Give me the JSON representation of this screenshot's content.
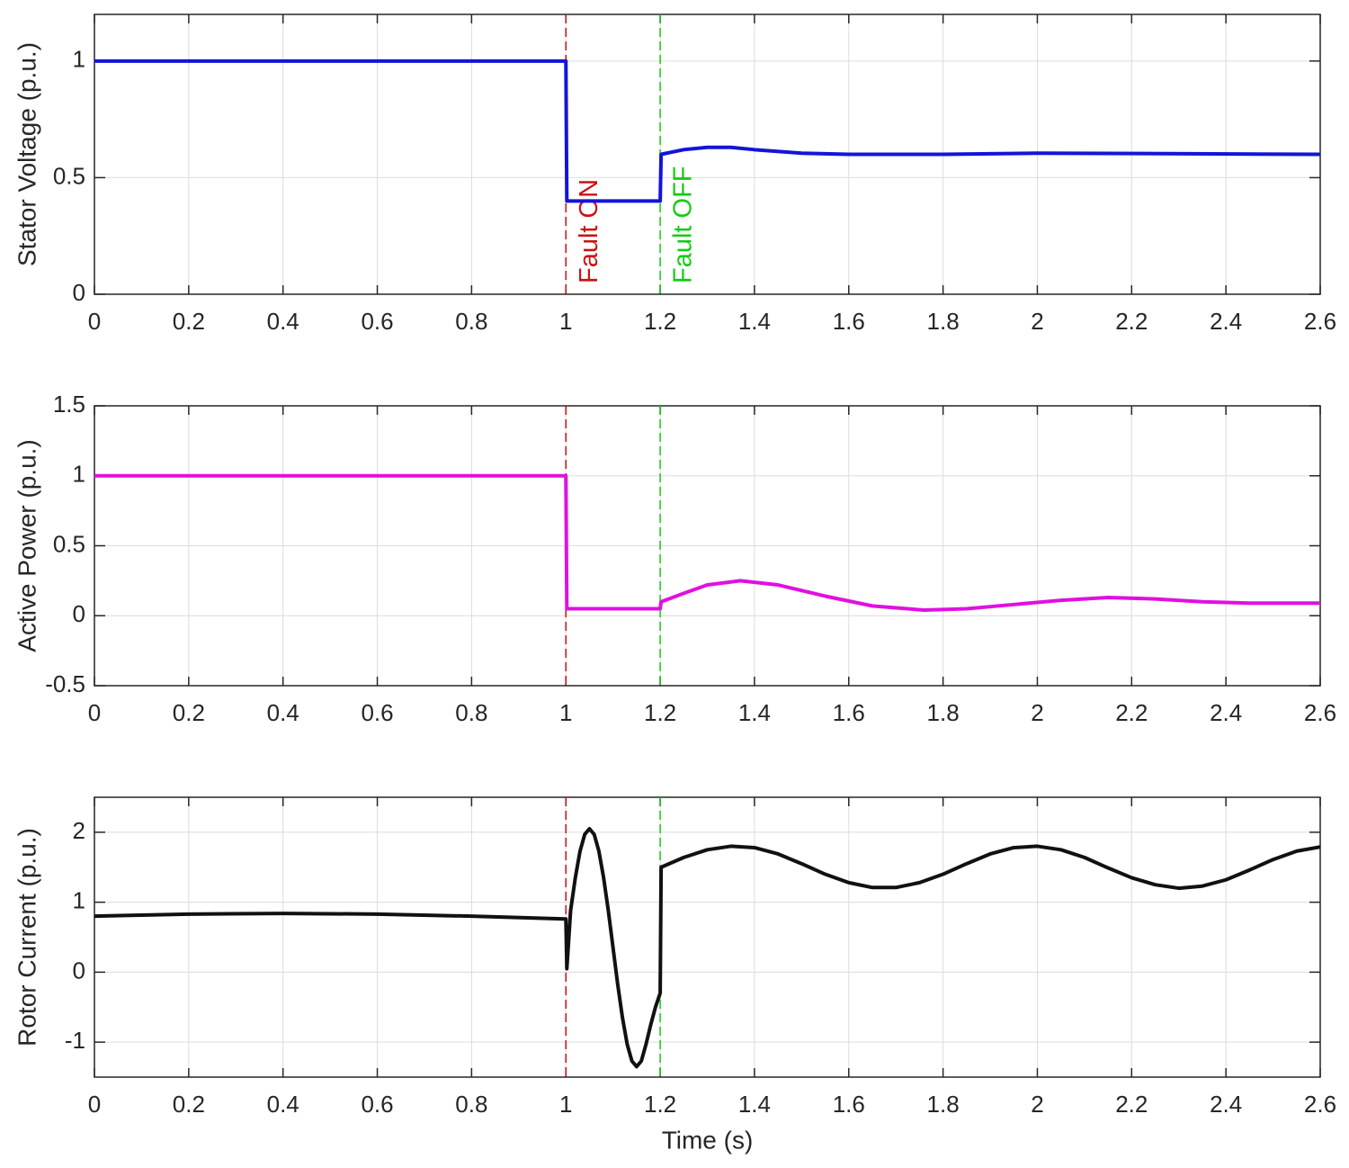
{
  "chart_data": [
    {
      "type": "line",
      "ylabel": "Stator Voltage (p.u.)",
      "color": "#1414d8",
      "x": [
        0,
        1.0,
        1.002,
        1.2,
        1.202,
        1.25,
        1.3,
        1.35,
        1.4,
        1.5,
        1.6,
        1.8,
        2.0,
        2.6
      ],
      "values": [
        1,
        1,
        0.4,
        0.4,
        0.6,
        0.62,
        0.63,
        0.63,
        0.62,
        0.605,
        0.6,
        0.6,
        0.605,
        0.6
      ],
      "xlim": [
        0,
        2.6
      ],
      "xticks": [
        0,
        0.2,
        0.4,
        0.6,
        0.8,
        1,
        1.2,
        1.4,
        1.6,
        1.8,
        2,
        2.2,
        2.4,
        2.6
      ],
      "ylim": [
        0,
        1.2
      ],
      "yticks": [
        0,
        0.5,
        1
      ],
      "grid": true,
      "vlines": [
        {
          "x": 1,
          "color": "#cc1111",
          "label": "Fault ON"
        },
        {
          "x": 1.2,
          "color": "#11cc11",
          "label": "Fault OFF"
        }
      ]
    },
    {
      "type": "line",
      "ylabel": "Active Power (p.u.)",
      "color": "#e010e0",
      "x": [
        0,
        1.0,
        1.002,
        1.2,
        1.202,
        1.25,
        1.3,
        1.37,
        1.45,
        1.55,
        1.65,
        1.76,
        1.85,
        1.95,
        2.05,
        2.15,
        2.25,
        2.35,
        2.45,
        2.6
      ],
      "values": [
        1,
        1,
        0.05,
        0.05,
        0.1,
        0.16,
        0.22,
        0.25,
        0.22,
        0.14,
        0.07,
        0.04,
        0.05,
        0.08,
        0.11,
        0.13,
        0.12,
        0.1,
        0.09,
        0.09
      ],
      "xlim": [
        0,
        2.6
      ],
      "xticks": [
        0,
        0.2,
        0.4,
        0.6,
        0.8,
        1,
        1.2,
        1.4,
        1.6,
        1.8,
        2,
        2.2,
        2.4,
        2.6
      ],
      "ylim": [
        -0.5,
        1.5
      ],
      "yticks": [
        -0.5,
        0,
        0.5,
        1,
        1.5
      ],
      "grid": true,
      "vlines": [
        {
          "x": 1,
          "color": "#cc1111"
        },
        {
          "x": 1.2,
          "color": "#11cc11"
        }
      ]
    },
    {
      "type": "line",
      "ylabel": "Rotor Current (p.u.)",
      "xlabel": "Time (s)",
      "color": "#111111",
      "x": [
        0,
        0.2,
        0.4,
        0.6,
        0.8,
        1.0,
        1.002,
        1.01,
        1.02,
        1.03,
        1.04,
        1.05,
        1.06,
        1.07,
        1.08,
        1.09,
        1.1,
        1.11,
        1.12,
        1.13,
        1.14,
        1.15,
        1.16,
        1.17,
        1.18,
        1.19,
        1.2,
        1.202,
        1.25,
        1.3,
        1.35,
        1.4,
        1.45,
        1.5,
        1.55,
        1.6,
        1.65,
        1.7,
        1.75,
        1.8,
        1.85,
        1.9,
        1.95,
        2.0,
        2.05,
        2.1,
        2.15,
        2.2,
        2.25,
        2.3,
        2.35,
        2.4,
        2.45,
        2.5,
        2.55,
        2.6
      ],
      "values": [
        0.8,
        0.83,
        0.84,
        0.83,
        0.8,
        0.76,
        0.05,
        0.88,
        1.35,
        1.73,
        1.97,
        2.05,
        1.97,
        1.73,
        1.35,
        0.88,
        0.35,
        -0.18,
        -0.65,
        -1.03,
        -1.27,
        -1.35,
        -1.27,
        -1.03,
        -0.75,
        -0.5,
        -0.3,
        1.5,
        1.64,
        1.75,
        1.8,
        1.78,
        1.69,
        1.55,
        1.4,
        1.28,
        1.21,
        1.21,
        1.28,
        1.4,
        1.55,
        1.69,
        1.78,
        1.8,
        1.75,
        1.64,
        1.49,
        1.35,
        1.25,
        1.2,
        1.23,
        1.32,
        1.46,
        1.61,
        1.73,
        1.79
      ],
      "xlim": [
        0,
        2.6
      ],
      "xticks": [
        0,
        0.2,
        0.4,
        0.6,
        0.8,
        1,
        1.2,
        1.4,
        1.6,
        1.8,
        2,
        2.2,
        2.4,
        2.6
      ],
      "ylim": [
        -1.5,
        2.5
      ],
      "yticks": [
        -1,
        0,
        1,
        2
      ],
      "grid": true,
      "vlines": [
        {
          "x": 1,
          "color": "#cc1111"
        },
        {
          "x": 1.2,
          "color": "#11cc11"
        }
      ]
    }
  ]
}
